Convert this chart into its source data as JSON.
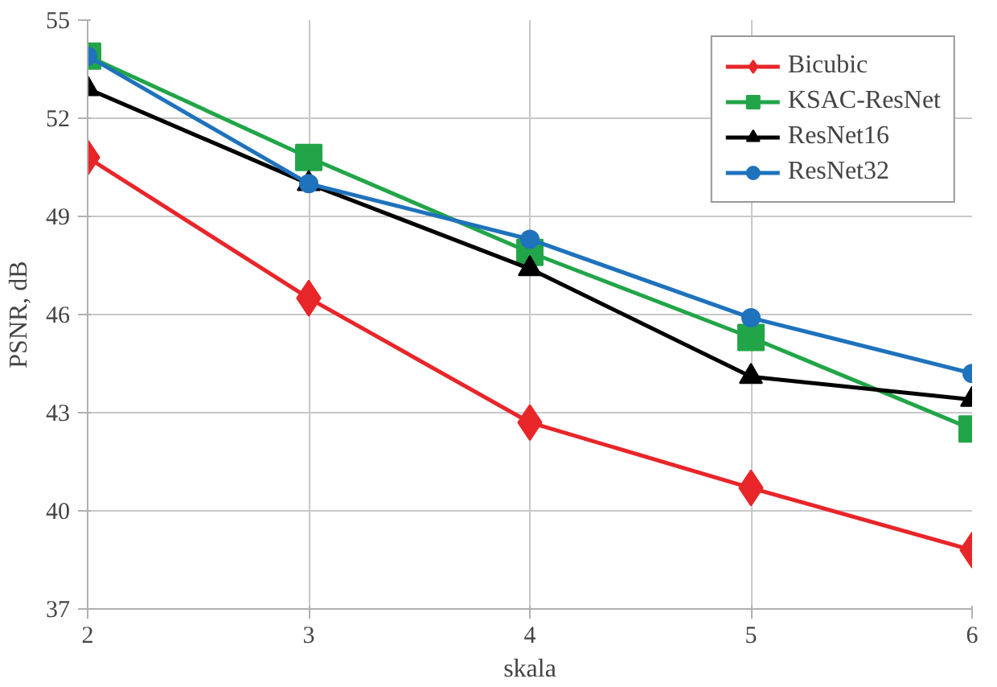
{
  "chart_data": {
    "type": "line",
    "xlabel": "skala",
    "ylabel": "PSNR, dB",
    "x": [
      2,
      3,
      4,
      5,
      6
    ],
    "series": [
      {
        "name": "Bicubic",
        "color": "#e8262a",
        "marker": "diamond",
        "values": [
          50.8,
          46.5,
          42.7,
          40.7,
          38.8
        ]
      },
      {
        "name": "KSAC-ResNet",
        "color": "#22a548",
        "marker": "square",
        "values": [
          53.9,
          50.8,
          47.9,
          45.3,
          42.5
        ]
      },
      {
        "name": "ResNet16",
        "color": "#000000",
        "marker": "triangle",
        "values": [
          52.9,
          50.0,
          47.4,
          44.1,
          43.4
        ]
      },
      {
        "name": "ResNet32",
        "color": "#1f72bc",
        "marker": "circle",
        "values": [
          53.9,
          50.0,
          48.3,
          45.9,
          44.2
        ]
      }
    ],
    "xlim": [
      2,
      6
    ],
    "ylim": [
      37,
      55
    ],
    "xticks": [
      2,
      3,
      4,
      5,
      6
    ],
    "yticks": [
      37,
      40,
      43,
      46,
      49,
      52,
      55
    ],
    "grid": true,
    "legend": "top right",
    "line_style": "solid"
  }
}
